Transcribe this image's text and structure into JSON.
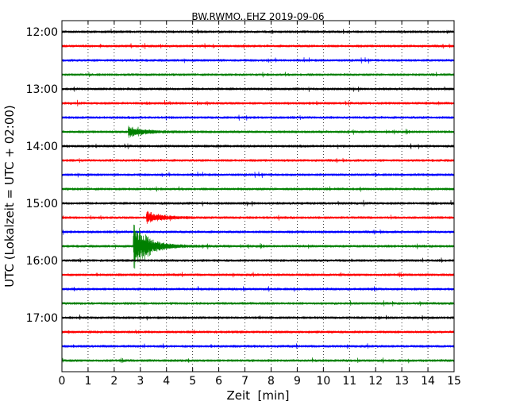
{
  "chart_data": {
    "type": "line",
    "title": "BW.RWMO..EHZ 2019-09-06",
    "xlabel": "Zeit  [min]",
    "ylabel": "UTC (Lokalzeit = UTC + 02:00)",
    "xlim": [
      0,
      15
    ],
    "x_ticks": [
      "0",
      "1",
      "2",
      "3",
      "4",
      "5",
      "6",
      "7",
      "8",
      "9",
      "10",
      "11",
      "12",
      "13",
      "14",
      "15"
    ],
    "y_tick_labels": [
      "12:00",
      "13:00",
      "14:00",
      "15:00",
      "16:00",
      "17:00"
    ],
    "grid": "vertical-dotted",
    "series_colors": [
      "#000000",
      "#ff0000",
      "#0000ff",
      "#008000"
    ],
    "traces": [
      {
        "start": "12:00",
        "color": "#000000"
      },
      {
        "start": "12:15",
        "color": "#ff0000"
      },
      {
        "start": "12:30",
        "color": "#0000ff"
      },
      {
        "start": "12:45",
        "color": "#008000"
      },
      {
        "start": "13:00",
        "color": "#000000"
      },
      {
        "start": "13:15",
        "color": "#ff0000"
      },
      {
        "start": "13:30",
        "color": "#0000ff"
      },
      {
        "start": "13:45",
        "color": "#008000"
      },
      {
        "start": "14:00",
        "color": "#000000"
      },
      {
        "start": "14:15",
        "color": "#ff0000"
      },
      {
        "start": "14:30",
        "color": "#0000ff"
      },
      {
        "start": "14:45",
        "color": "#008000"
      },
      {
        "start": "15:00",
        "color": "#000000"
      },
      {
        "start": "15:15",
        "color": "#ff0000"
      },
      {
        "start": "15:30",
        "color": "#0000ff"
      },
      {
        "start": "15:45",
        "color": "#008000"
      },
      {
        "start": "16:00",
        "color": "#000000"
      },
      {
        "start": "16:15",
        "color": "#ff0000"
      },
      {
        "start": "16:30",
        "color": "#0000ff"
      },
      {
        "start": "16:45",
        "color": "#008000"
      },
      {
        "start": "17:00",
        "color": "#000000"
      },
      {
        "start": "17:15",
        "color": "#ff0000"
      },
      {
        "start": "17:30",
        "color": "#0000ff"
      },
      {
        "start": "17:45",
        "color": "#008000"
      }
    ],
    "events": [
      {
        "trace": 15,
        "minute": 2.75,
        "amplitude": 1.0,
        "label": ""
      },
      {
        "trace": 13,
        "minute": 3.25,
        "amplitude": 0.25,
        "label": ""
      },
      {
        "trace": 7,
        "minute": 2.55,
        "amplitude": 0.2,
        "label": ""
      }
    ]
  }
}
